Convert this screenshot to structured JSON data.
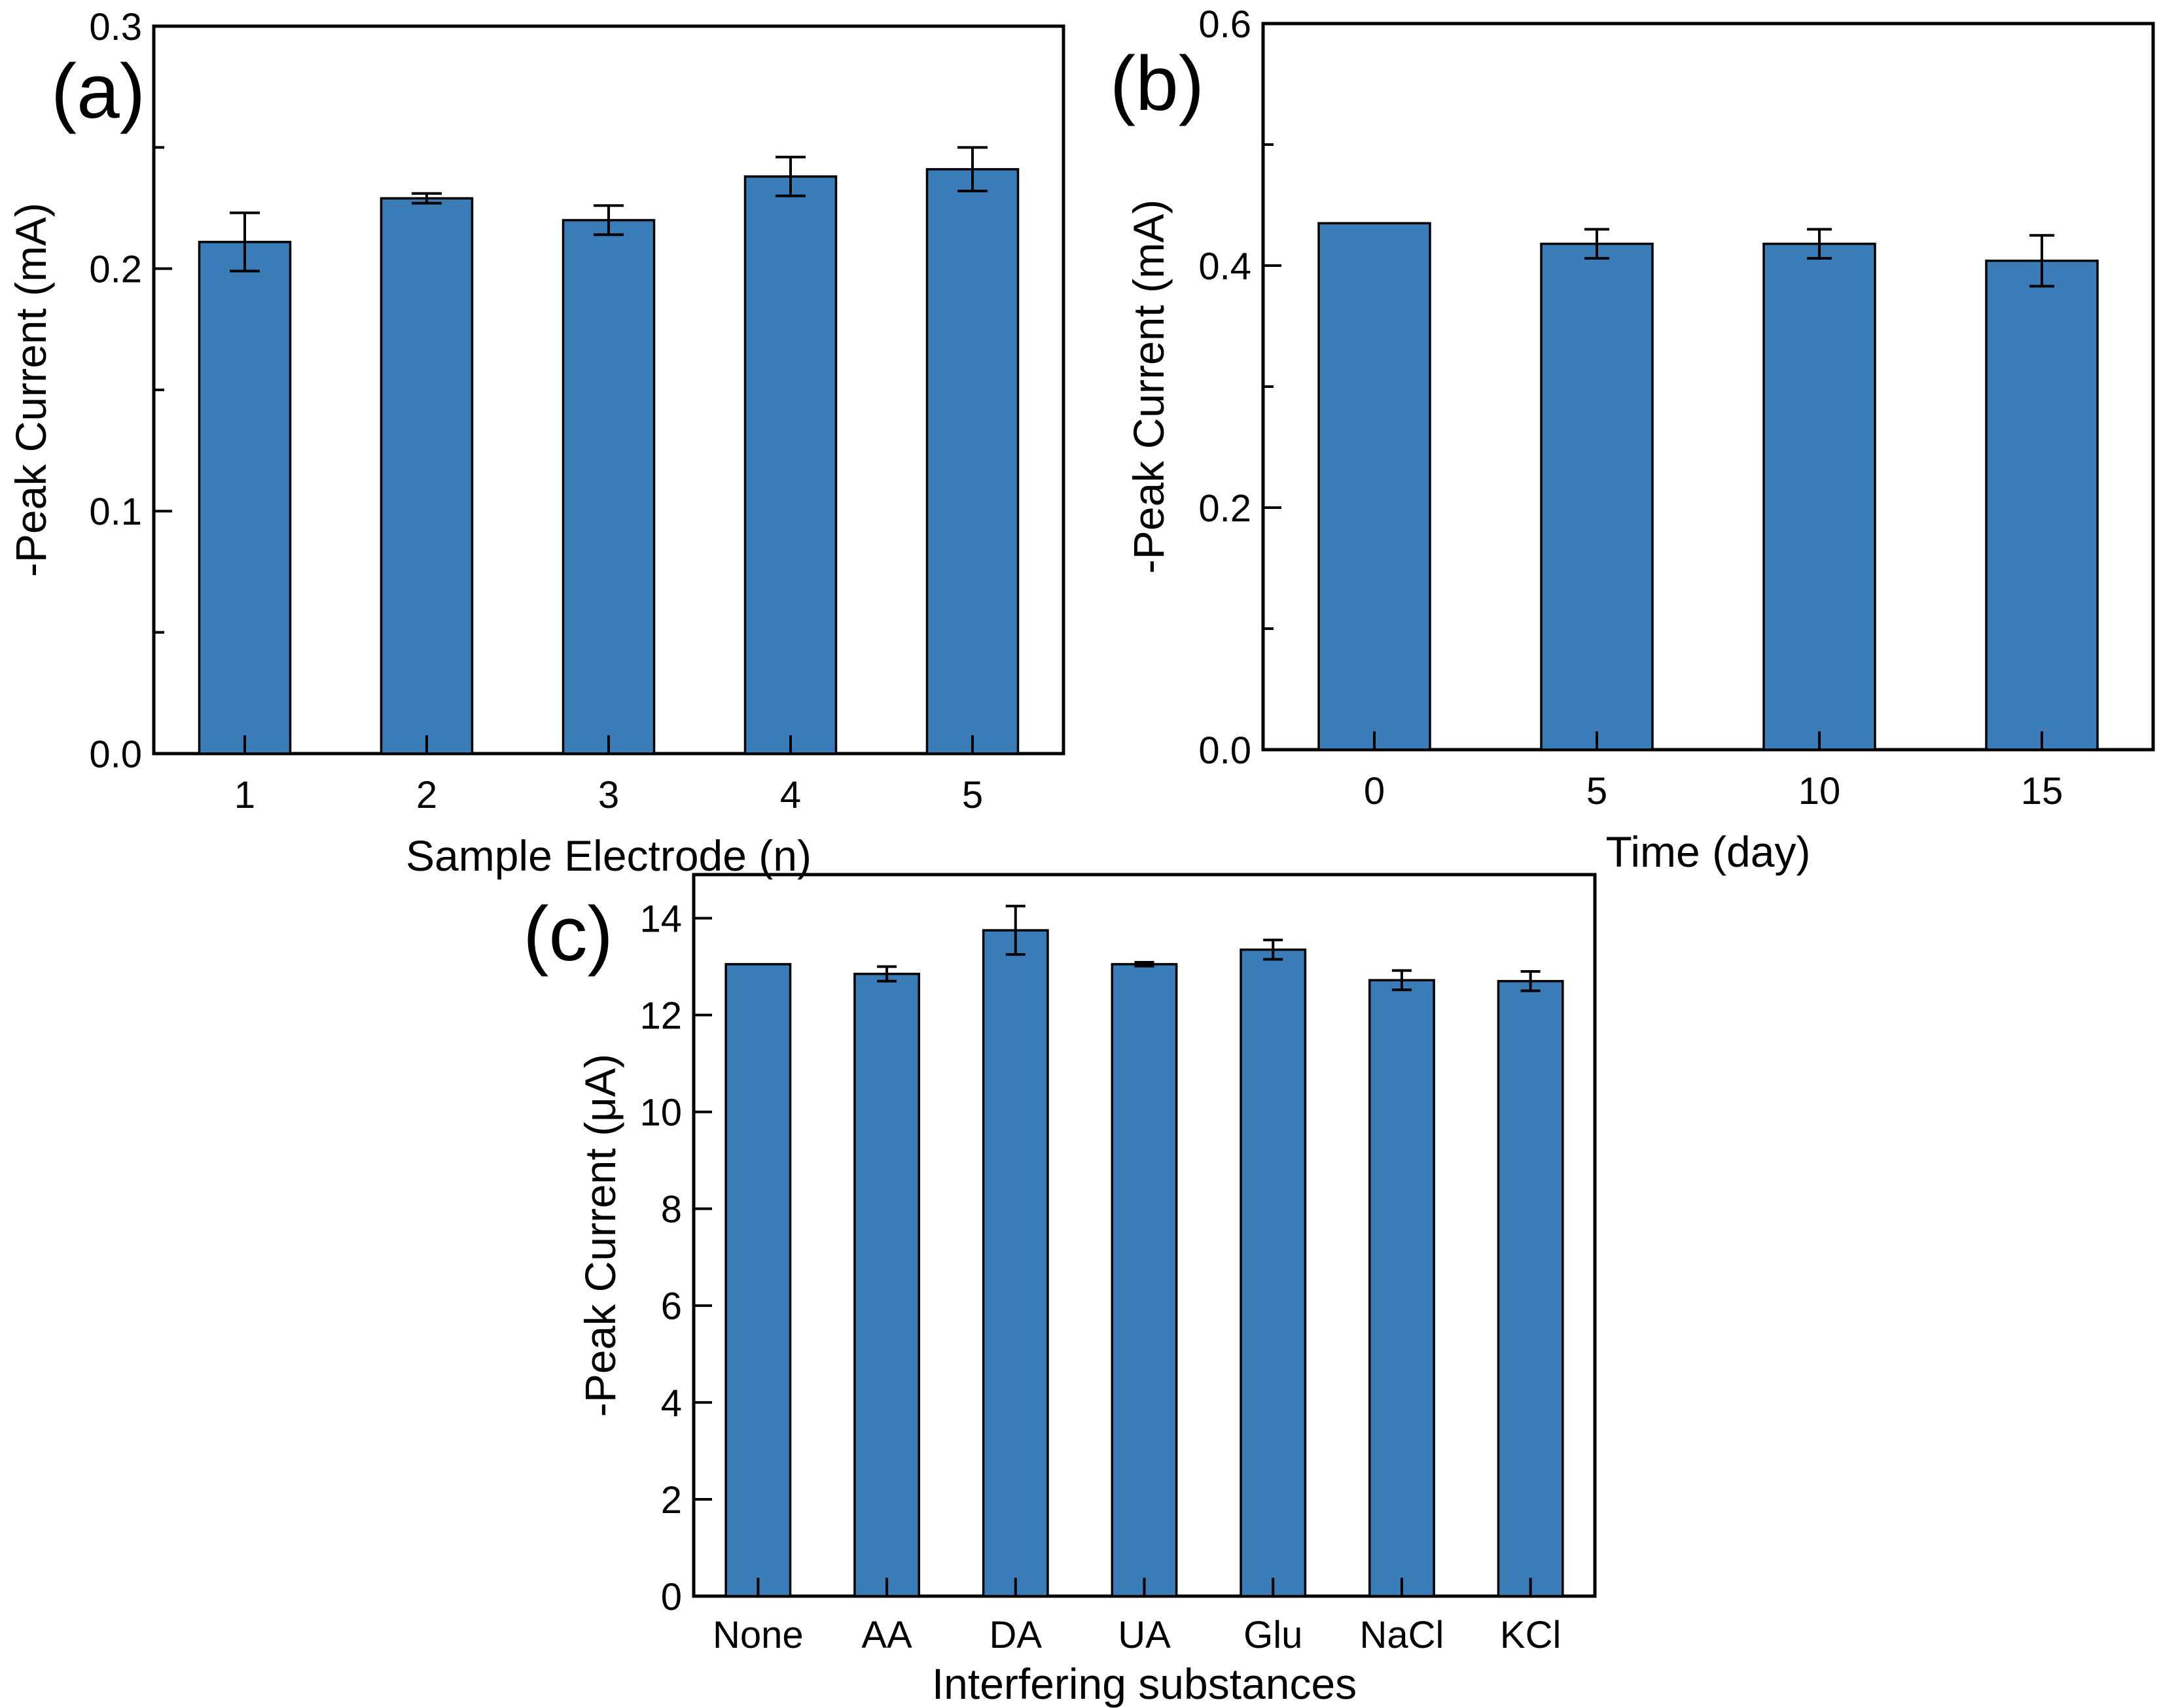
{
  "figure": {
    "background": "#FFFFFF",
    "bar_fill": "#3A7CB8",
    "bar_edge": "#000000",
    "axis_color": "#000000",
    "error_bar_color": "#000000"
  },
  "chart_data": [
    {
      "type": "bar",
      "panel_label": "(a)",
      "xlabel": "Sample Electrode (n)",
      "ylabel": "-Peak Current (mA)",
      "categories": [
        "1",
        "2",
        "3",
        "4",
        "5"
      ],
      "values": [
        0.211,
        0.229,
        0.22,
        0.238,
        0.241
      ],
      "errors": [
        0.012,
        0.002,
        0.006,
        0.008,
        0.009
      ],
      "ylim": [
        0,
        0.3
      ],
      "y_ticks": [
        {
          "v": 0.0,
          "label": "0.0"
        },
        {
          "v": 0.1,
          "label": "0.1"
        },
        {
          "v": 0.2,
          "label": "0.2"
        },
        {
          "v": 0.3,
          "label": "0.3"
        }
      ],
      "y_minor_step": 0.05,
      "grid": false,
      "legend": null
    },
    {
      "type": "bar",
      "panel_label": "(b)",
      "xlabel": "Time (day)",
      "ylabel": "-Peak Current (mA)",
      "categories": [
        "0",
        "5",
        "10",
        "15"
      ],
      "values": [
        0.435,
        0.418,
        0.418,
        0.404
      ],
      "errors": [
        0,
        0.012,
        0.012,
        0.021
      ],
      "ylim": [
        0,
        0.6
      ],
      "y_ticks": [
        {
          "v": 0.0,
          "label": "0.0"
        },
        {
          "v": 0.2,
          "label": "0.2"
        },
        {
          "v": 0.4,
          "label": "0.4"
        },
        {
          "v": 0.6,
          "label": "0.6"
        }
      ],
      "y_minor_step": 0.1,
      "grid": false,
      "legend": null
    },
    {
      "type": "bar",
      "panel_label": "(c)",
      "xlabel": "Interfering substances",
      "ylabel": "-Peak Current (μA)",
      "categories": [
        "None",
        "AA",
        "DA",
        "UA",
        "Glu",
        "NaCl",
        "KCl"
      ],
      "values": [
        13.05,
        12.85,
        13.75,
        13.05,
        13.35,
        12.72,
        12.7
      ],
      "errors": [
        0,
        0.15,
        0.5,
        0.04,
        0.2,
        0.2,
        0.2
      ],
      "ylim": [
        0,
        14.9
      ],
      "y_ticks": [
        {
          "v": 0,
          "label": "0"
        },
        {
          "v": 2,
          "label": "2"
        },
        {
          "v": 4,
          "label": "4"
        },
        {
          "v": 6,
          "label": "6"
        },
        {
          "v": 8,
          "label": "8"
        },
        {
          "v": 10,
          "label": "10"
        },
        {
          "v": 12,
          "label": "12"
        },
        {
          "v": 14,
          "label": "14"
        }
      ],
      "y_minor_step": null,
      "grid": false,
      "legend": null
    }
  ]
}
